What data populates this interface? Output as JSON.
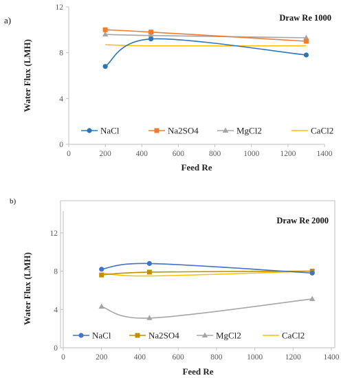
{
  "colors": {
    "NaCl_a": "#2E75B6",
    "Na2SO4_a": "#ED7D31",
    "MgCl2_a": "#A5A5A5",
    "CaCl2_a": "#FFC000",
    "NaCl_b": "#4472C4",
    "Na2SO4_b": "#BF9000",
    "MgCl2_b": "#A5A5A5",
    "CaCl2_b": "#FFC000"
  },
  "chart_data": [
    {
      "panel_label": "a)",
      "type": "line",
      "title": "Draw Re 1000",
      "xlabel": "Feed Re",
      "ylabel": "Water Flux (LMH)",
      "xlim": [
        0,
        1400
      ],
      "ylim": [
        0,
        12
      ],
      "xticks": [
        0,
        200,
        400,
        600,
        800,
        1000,
        1200,
        1400
      ],
      "yticks": [
        0,
        4,
        8,
        12
      ],
      "grid": false,
      "legend_position": "bottom-inside",
      "x": [
        200,
        450,
        1300
      ],
      "series": [
        {
          "name": "NaCl",
          "values": [
            6.8,
            9.2,
            7.8
          ],
          "marker": "circle",
          "smooth": true
        },
        {
          "name": "Na2SO4",
          "values": [
            10.0,
            9.8,
            9.0
          ],
          "marker": "square",
          "smooth": true
        },
        {
          "name": "MgCl2",
          "values": [
            9.6,
            9.5,
            9.3
          ],
          "marker": "triangle",
          "smooth": true
        },
        {
          "name": "CaCl2",
          "values": [
            8.7,
            8.6,
            8.6
          ],
          "marker": "none",
          "smooth": true
        }
      ]
    },
    {
      "panel_label": "b)",
      "type": "line",
      "title": "Draw Re 2000",
      "xlabel": "Feed Re",
      "ylabel": "Water Flux (LMH)",
      "xlim": [
        0,
        1400
      ],
      "ylim": [
        0,
        15
      ],
      "xticks": [
        0,
        200,
        400,
        600,
        800,
        1000,
        1200,
        1400
      ],
      "yticks": [
        0,
        4,
        8,
        12
      ],
      "grid": false,
      "legend_position": "bottom-inside",
      "x": [
        200,
        450,
        1300
      ],
      "series": [
        {
          "name": "NaCl",
          "values": [
            8.2,
            8.8,
            7.8
          ],
          "marker": "circle",
          "smooth": true
        },
        {
          "name": "Na2SO4",
          "values": [
            7.6,
            7.9,
            8.0
          ],
          "marker": "square",
          "smooth": true
        },
        {
          "name": "MgCl2",
          "values": [
            4.3,
            3.1,
            5.1
          ],
          "marker": "triangle",
          "smooth": true
        },
        {
          "name": "CaCl2",
          "values": [
            7.8,
            7.5,
            8.0
          ],
          "marker": "none",
          "smooth": true
        }
      ]
    }
  ]
}
